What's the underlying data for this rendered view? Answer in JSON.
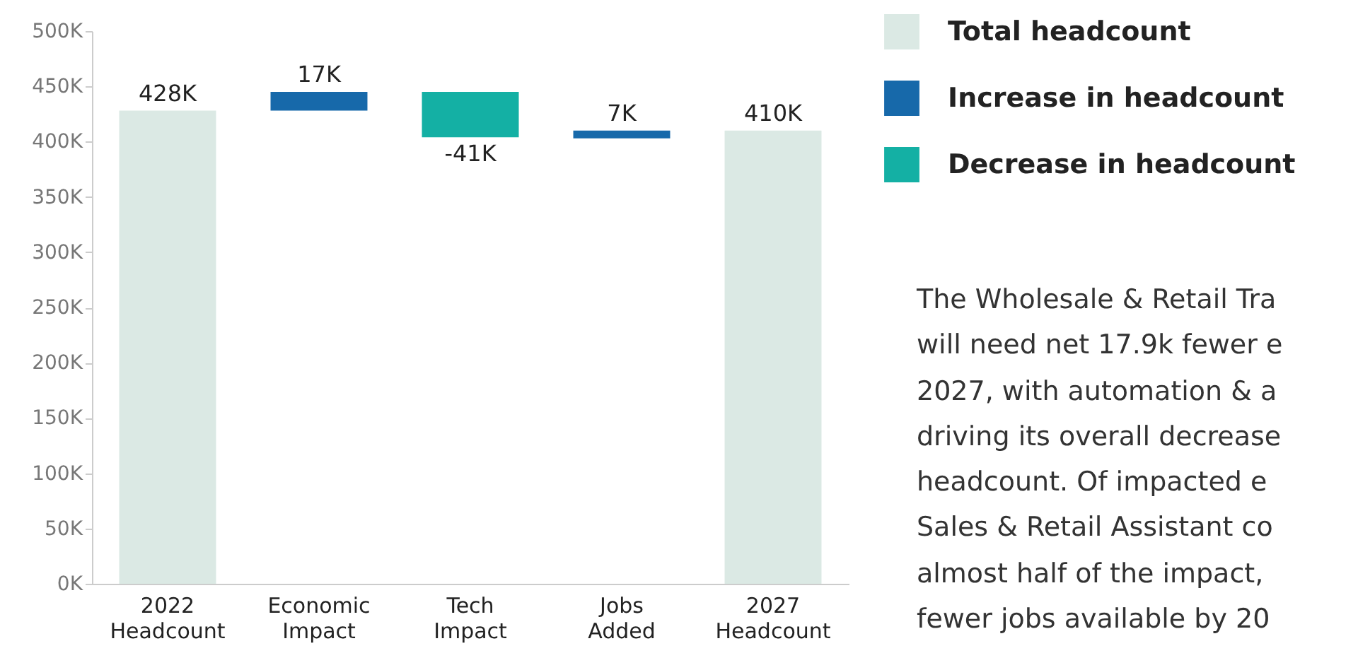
{
  "chart_data": {
    "type": "bar",
    "categories": [
      "2022 Headcount",
      "Economic Impact",
      "Tech Impact",
      "Jobs Added",
      "2027 Headcount"
    ],
    "series": [
      {
        "name": "Total headcount",
        "color": "#dbe9e4",
        "values": [
          428,
          null,
          null,
          null,
          410
        ],
        "base": [
          0,
          null,
          null,
          null,
          0
        ],
        "value_labels": [
          "428K",
          null,
          null,
          null,
          "410K"
        ]
      },
      {
        "name": "Increase in headcount",
        "color": "#1769aa",
        "values": [
          null,
          17,
          null,
          7,
          null
        ],
        "base": [
          null,
          428,
          null,
          403,
          null
        ],
        "value_labels": [
          null,
          "17K",
          null,
          "7K",
          null
        ]
      },
      {
        "name": "Decrease in headcount",
        "color": "#14b0a4",
        "values": [
          null,
          null,
          -41,
          null,
          null
        ],
        "base": [
          null,
          null,
          445,
          null,
          null
        ],
        "value_labels": [
          null,
          null,
          "-41K",
          null,
          null
        ]
      }
    ],
    "ylim": [
      0,
      500
    ],
    "yticks": [
      {
        "value": 0,
        "label": "0K"
      },
      {
        "value": 50,
        "label": "50K"
      },
      {
        "value": 100,
        "label": "100K"
      },
      {
        "value": 150,
        "label": "150K"
      },
      {
        "value": 200,
        "label": "200K"
      },
      {
        "value": 250,
        "label": "250K"
      },
      {
        "value": 300,
        "label": "300K"
      },
      {
        "value": 350,
        "label": "350K"
      },
      {
        "value": 400,
        "label": "400K"
      },
      {
        "value": 450,
        "label": "450K"
      },
      {
        "value": 500,
        "label": "500K"
      }
    ],
    "grid": false,
    "legend": "top right",
    "annotations": [
      "The Wholesale & Retail Tra",
      "will need net 17.9k fewer e",
      "2027, with automation & a",
      "driving its overall decrease",
      "headcount. Of impacted e",
      "Sales & Retail Assistant co",
      "almost half of the impact,",
      "fewer jobs available by 20"
    ]
  }
}
